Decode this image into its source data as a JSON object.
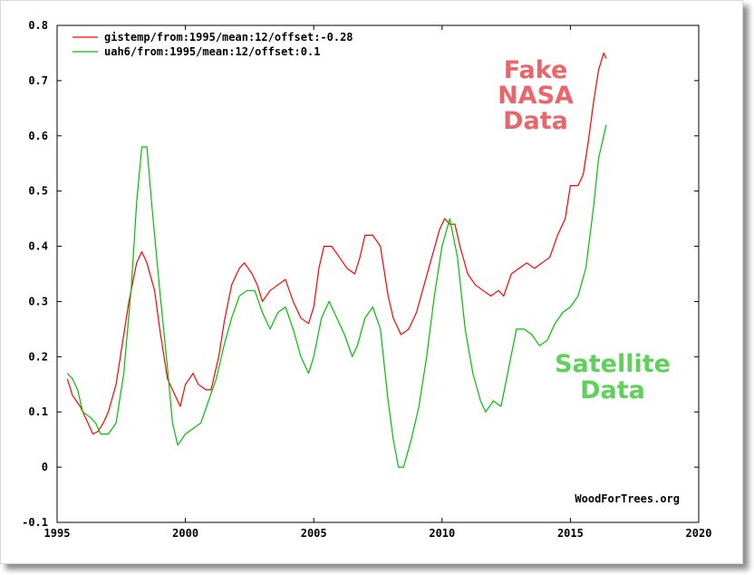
{
  "chart_data": {
    "type": "line",
    "xlim": [
      1995,
      2020
    ],
    "ylim": [
      -0.1,
      0.8
    ],
    "x_ticks": [
      "1995",
      "2000",
      "2005",
      "2010",
      "2015",
      "2020"
    ],
    "y_ticks": [
      "-0.1",
      "0",
      "0.1",
      "0.2",
      "0.3",
      "0.4",
      "0.5",
      "0.6",
      "0.7",
      "0.8"
    ],
    "grid": false,
    "legend_position": "top-left",
    "credit": "WoodForTrees.org",
    "annotations": {
      "nasa": [
        "Fake",
        "NASA",
        "Data"
      ],
      "satellite": [
        "Satellite",
        "Data"
      ]
    },
    "series": [
      {
        "name": "gistemp/from:1995/mean:12/offset:-0.28",
        "color": "#ff0000",
        "points": [
          [
            1995.4,
            0.16
          ],
          [
            1995.6,
            0.13
          ],
          [
            1995.9,
            0.11
          ],
          [
            1996.2,
            0.08
          ],
          [
            1996.4,
            0.06
          ],
          [
            1996.6,
            0.065
          ],
          [
            1996.8,
            0.08
          ],
          [
            1997.0,
            0.1
          ],
          [
            1997.3,
            0.15
          ],
          [
            1997.6,
            0.24
          ],
          [
            1997.8,
            0.3
          ],
          [
            1998.1,
            0.37
          ],
          [
            1998.3,
            0.39
          ],
          [
            1998.5,
            0.37
          ],
          [
            1998.8,
            0.32
          ],
          [
            1999.0,
            0.25
          ],
          [
            1999.3,
            0.16
          ],
          [
            1999.6,
            0.13
          ],
          [
            1999.8,
            0.11
          ],
          [
            2000.0,
            0.15
          ],
          [
            2000.3,
            0.17
          ],
          [
            2000.5,
            0.15
          ],
          [
            2000.8,
            0.14
          ],
          [
            2001.0,
            0.14
          ],
          [
            2001.3,
            0.2
          ],
          [
            2001.5,
            0.26
          ],
          [
            2001.8,
            0.33
          ],
          [
            2002.1,
            0.36
          ],
          [
            2002.3,
            0.37
          ],
          [
            2002.6,
            0.35
          ],
          [
            2002.8,
            0.33
          ],
          [
            2003.0,
            0.3
          ],
          [
            2003.3,
            0.32
          ],
          [
            2003.6,
            0.33
          ],
          [
            2003.9,
            0.34
          ],
          [
            2004.2,
            0.3
          ],
          [
            2004.5,
            0.27
          ],
          [
            2004.8,
            0.26
          ],
          [
            2005.0,
            0.29
          ],
          [
            2005.2,
            0.36
          ],
          [
            2005.4,
            0.4
          ],
          [
            2005.7,
            0.4
          ],
          [
            2006.0,
            0.38
          ],
          [
            2006.3,
            0.36
          ],
          [
            2006.6,
            0.35
          ],
          [
            2006.8,
            0.38
          ],
          [
            2007.0,
            0.42
          ],
          [
            2007.3,
            0.42
          ],
          [
            2007.6,
            0.4
          ],
          [
            2007.9,
            0.31
          ],
          [
            2008.1,
            0.27
          ],
          [
            2008.4,
            0.24
          ],
          [
            2008.7,
            0.25
          ],
          [
            2009.0,
            0.28
          ],
          [
            2009.3,
            0.33
          ],
          [
            2009.6,
            0.38
          ],
          [
            2009.9,
            0.43
          ],
          [
            2010.1,
            0.45
          ],
          [
            2010.3,
            0.44
          ],
          [
            2010.5,
            0.44
          ],
          [
            2010.7,
            0.4
          ],
          [
            2011.0,
            0.35
          ],
          [
            2011.3,
            0.33
          ],
          [
            2011.6,
            0.32
          ],
          [
            2011.9,
            0.31
          ],
          [
            2012.2,
            0.32
          ],
          [
            2012.4,
            0.31
          ],
          [
            2012.7,
            0.35
          ],
          [
            2013.0,
            0.36
          ],
          [
            2013.3,
            0.37
          ],
          [
            2013.6,
            0.36
          ],
          [
            2013.9,
            0.37
          ],
          [
            2014.2,
            0.38
          ],
          [
            2014.5,
            0.42
          ],
          [
            2014.8,
            0.45
          ],
          [
            2015.0,
            0.51
          ],
          [
            2015.3,
            0.51
          ],
          [
            2015.5,
            0.53
          ],
          [
            2015.7,
            0.59
          ],
          [
            2015.9,
            0.66
          ],
          [
            2016.1,
            0.72
          ],
          [
            2016.3,
            0.75
          ],
          [
            2016.4,
            0.74
          ]
        ]
      },
      {
        "name": "uah6/from:1995/mean:12/offset:0.1",
        "color": "#00c000",
        "points": [
          [
            1995.4,
            0.17
          ],
          [
            1995.6,
            0.16
          ],
          [
            1995.8,
            0.14
          ],
          [
            1996.0,
            0.1
          ],
          [
            1996.3,
            0.09
          ],
          [
            1996.5,
            0.08
          ],
          [
            1996.7,
            0.06
          ],
          [
            1997.0,
            0.06
          ],
          [
            1997.3,
            0.08
          ],
          [
            1997.6,
            0.17
          ],
          [
            1997.9,
            0.33
          ],
          [
            1998.1,
            0.48
          ],
          [
            1998.3,
            0.58
          ],
          [
            1998.5,
            0.58
          ],
          [
            1998.7,
            0.47
          ],
          [
            1999.0,
            0.32
          ],
          [
            1999.3,
            0.18
          ],
          [
            1999.5,
            0.08
          ],
          [
            1999.7,
            0.04
          ],
          [
            2000.0,
            0.06
          ],
          [
            2000.3,
            0.07
          ],
          [
            2000.6,
            0.08
          ],
          [
            2000.9,
            0.12
          ],
          [
            2001.2,
            0.16
          ],
          [
            2001.5,
            0.22
          ],
          [
            2001.8,
            0.27
          ],
          [
            2002.1,
            0.31
          ],
          [
            2002.4,
            0.32
          ],
          [
            2002.7,
            0.32
          ],
          [
            2003.0,
            0.28
          ],
          [
            2003.3,
            0.25
          ],
          [
            2003.6,
            0.28
          ],
          [
            2003.9,
            0.29
          ],
          [
            2004.2,
            0.25
          ],
          [
            2004.5,
            0.2
          ],
          [
            2004.8,
            0.17
          ],
          [
            2005.0,
            0.2
          ],
          [
            2005.3,
            0.27
          ],
          [
            2005.6,
            0.3
          ],
          [
            2005.9,
            0.27
          ],
          [
            2006.2,
            0.24
          ],
          [
            2006.5,
            0.2
          ],
          [
            2006.7,
            0.22
          ],
          [
            2007.0,
            0.27
          ],
          [
            2007.3,
            0.29
          ],
          [
            2007.6,
            0.25
          ],
          [
            2007.9,
            0.12
          ],
          [
            2008.1,
            0.05
          ],
          [
            2008.3,
            0.0
          ],
          [
            2008.5,
            0.0
          ],
          [
            2008.8,
            0.05
          ],
          [
            2009.1,
            0.11
          ],
          [
            2009.4,
            0.2
          ],
          [
            2009.7,
            0.31
          ],
          [
            2010.0,
            0.4
          ],
          [
            2010.3,
            0.45
          ],
          [
            2010.6,
            0.38
          ],
          [
            2010.9,
            0.25
          ],
          [
            2011.2,
            0.17
          ],
          [
            2011.5,
            0.12
          ],
          [
            2011.7,
            0.1
          ],
          [
            2012.0,
            0.12
          ],
          [
            2012.3,
            0.11
          ],
          [
            2012.6,
            0.18
          ],
          [
            2012.9,
            0.25
          ],
          [
            2013.2,
            0.25
          ],
          [
            2013.5,
            0.24
          ],
          [
            2013.8,
            0.22
          ],
          [
            2014.1,
            0.23
          ],
          [
            2014.4,
            0.26
          ],
          [
            2014.7,
            0.28
          ],
          [
            2015.0,
            0.29
          ],
          [
            2015.3,
            0.31
          ],
          [
            2015.6,
            0.36
          ],
          [
            2015.9,
            0.47
          ],
          [
            2016.1,
            0.56
          ],
          [
            2016.4,
            0.62
          ]
        ]
      }
    ]
  }
}
